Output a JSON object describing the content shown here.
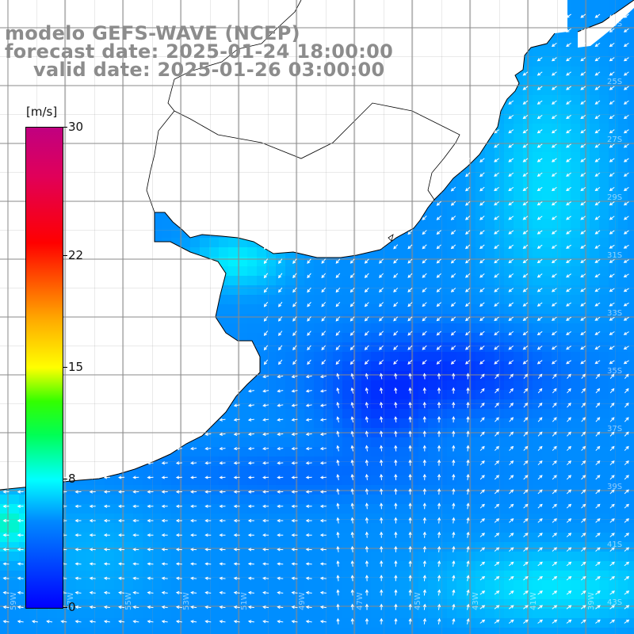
{
  "header": {
    "line1": "modelo GEFS-WAVE (NCEP)",
    "line2": "forecast date: 2025-01-24 18:00:00",
    "line3": "valid date: 2025-01-26 03:00:00"
  },
  "colorbar": {
    "unit": "[m/s]",
    "ticks": [
      "30",
      "22",
      "15",
      "8",
      "0"
    ],
    "tick_values": [
      30,
      22,
      15,
      8,
      0
    ],
    "range": [
      0,
      30
    ],
    "colors": [
      "#0000ff",
      "#0088ff",
      "#00ffff",
      "#00ff55",
      "#ffff00",
      "#ff5500",
      "#ff0000",
      "#c00080"
    ]
  },
  "map": {
    "lat_labels": [
      "23S",
      "25S",
      "27S",
      "29S",
      "31S",
      "33S",
      "35S",
      "37S",
      "39S",
      "41S",
      "43S"
    ],
    "lon_labels": [
      "59W",
      "57W",
      "55W",
      "53W",
      "51W",
      "49W",
      "47W",
      "45W",
      "43W",
      "41W",
      "39W"
    ],
    "land_color": "#ffffff",
    "grid_color": "#888888",
    "arrow_color": "#ffffff"
  }
}
